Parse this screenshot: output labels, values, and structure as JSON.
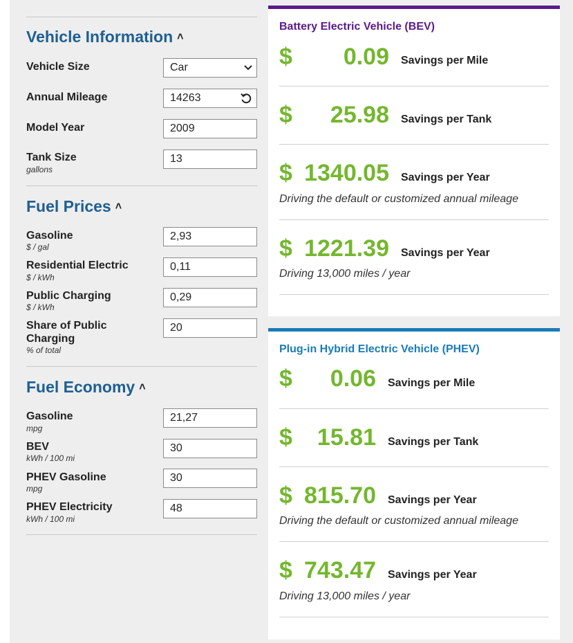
{
  "vehicle_info": {
    "title": "Vehicle Information",
    "vehicle_size_label": "Vehicle Size",
    "vehicle_size_value": "Car",
    "annual_mileage_label": "Annual Mileage",
    "annual_mileage_value": "14263",
    "model_year_label": "Model Year",
    "model_year_value": "2009",
    "tank_size_label": "Tank Size",
    "tank_size_unit": "gallons",
    "tank_size_value": "13"
  },
  "fuel_prices": {
    "title": "Fuel Prices",
    "gasoline_label": "Gasoline",
    "gasoline_unit": "$ / gal",
    "gasoline_value": "2,93",
    "res_electric_label": "Residential Electric",
    "res_electric_unit": "$ / kWh",
    "res_electric_value": "0,11",
    "public_charging_label": "Public Charging",
    "public_charging_unit": "$ / kWh",
    "public_charging_value": "0,29",
    "share_public_label": "Share of Public Charging",
    "share_public_unit": "% of total",
    "share_public_value": "20"
  },
  "fuel_economy": {
    "title": "Fuel Economy",
    "gasoline_label": "Gasoline",
    "gasoline_unit": "mpg",
    "gasoline_value": "21,27",
    "bev_label": "BEV",
    "bev_unit": "kWh / 100 mi",
    "bev_value": "30",
    "phev_gas_label": "PHEV Gasoline",
    "phev_gas_unit": "mpg",
    "phev_gas_value": "30",
    "phev_elec_label": "PHEV Electricity",
    "phev_elec_unit": "kWh / 100 mi",
    "phev_elec_value": "48"
  },
  "bev": {
    "title": "Battery Electric Vehicle (BEV)",
    "currency": "$",
    "per_mile_value": "0.09",
    "per_mile_label": "Savings per Mile",
    "per_tank_value": "25.98",
    "per_tank_label": "Savings per Tank",
    "per_year_value": "1340.05",
    "per_year_label": "Savings per Year",
    "per_year_note": "Driving the default or customized annual mileage",
    "per_year_13k_value": "1221.39",
    "per_year_13k_label": "Savings per Year",
    "per_year_13k_note": "Driving 13,000 miles / year"
  },
  "phev": {
    "title": "Plug-in Hybrid Electric Vehicle (PHEV)",
    "currency": "$",
    "per_mile_value": "0.06",
    "per_mile_label": "Savings per Mile",
    "per_tank_value": "15.81",
    "per_tank_label": "Savings per Tank",
    "per_year_value": "815.70",
    "per_year_label": "Savings per Year",
    "per_year_note": "Driving the default or customized annual mileage",
    "per_year_13k_value": "743.47",
    "per_year_13k_label": "Savings per Year",
    "per_year_13k_note": "Driving 13,000 miles / year"
  },
  "colors": {
    "section_title": "#1d5f92",
    "bev_accent": "#5b1a8a",
    "phev_accent": "#1a7bb9",
    "savings_green": "#74b72e",
    "page_bg": "#eeeeee"
  },
  "icons": {
    "collapse": "chevron-up-icon",
    "dropdown": "chevron-down-icon",
    "reset": "reset-icon"
  }
}
